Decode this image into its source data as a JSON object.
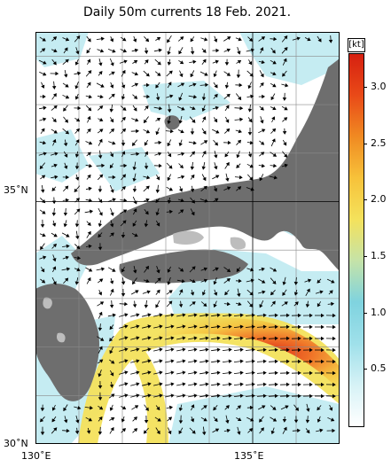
{
  "title": "Daily 50m currents 18 Feb. 2021.",
  "colorbar": {
    "unit": "[kt]",
    "min": 0,
    "max": 3.3,
    "ticks": [
      "0.5",
      "1.0",
      "1.5",
      "2.0",
      "2.5",
      "3.0"
    ],
    "tick_values": [
      0.5,
      1.0,
      1.5,
      2.0,
      2.5,
      3.0
    ],
    "colors": [
      "#ffffff",
      "#d6f2f6",
      "#9fe0ea",
      "#7fd3df",
      "#c5e3a8",
      "#f4e25c",
      "#f7c23a",
      "#f08a22",
      "#e94a18",
      "#d62010"
    ]
  },
  "axes": {
    "lat_labels": [
      "35˚N",
      "30˚N"
    ],
    "lat_values": [
      35,
      30
    ],
    "lon_labels": [
      "130˚E",
      "135˚E"
    ],
    "lon_values": [
      130,
      135
    ],
    "lon_range": [
      130,
      137
    ],
    "lat_range": [
      30,
      38.5
    ]
  },
  "map": {
    "land_color": "#6e6e6e",
    "island_light_color": "#bdbdbd",
    "sea_color": "#ffffff",
    "grid": true
  }
}
